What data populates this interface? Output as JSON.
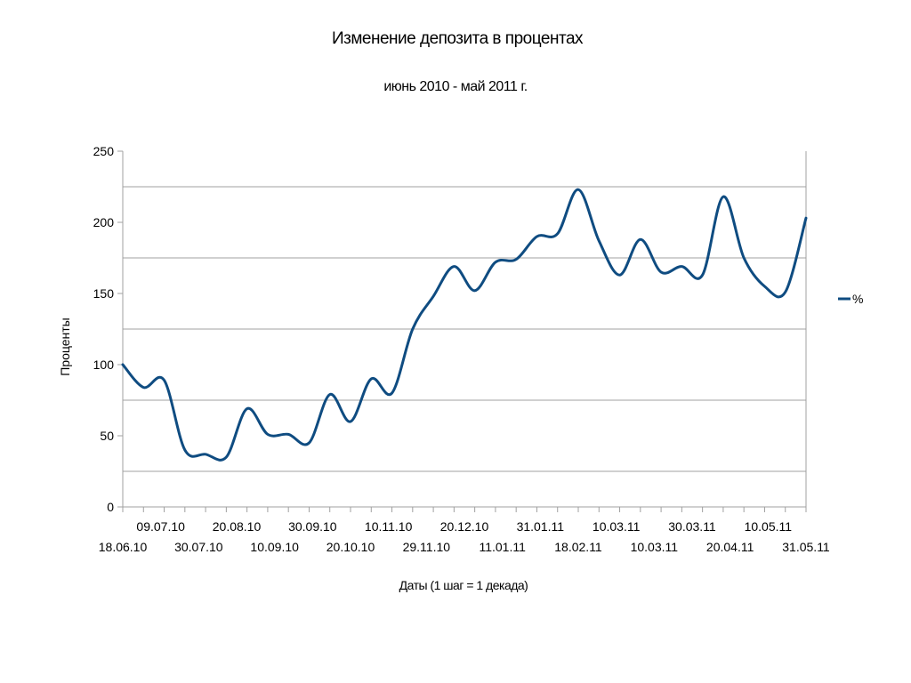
{
  "chart_data": {
    "type": "line",
    "title": "Изменение депозита в процентах",
    "subtitle": "июнь 2010 - май 2011 г.",
    "xlabel": "Даты (1 шаг = 1 декада)",
    "ylabel": "Проценты",
    "ylim": [
      0,
      250
    ],
    "yticks": [
      "0",
      "50",
      "100",
      "150",
      "200",
      "250"
    ],
    "grid": true,
    "legend_position": "right",
    "x_tick_labels": [
      "18.06.10",
      "09.07.10",
      "30.07.10",
      "20.08.10",
      "10.09.10",
      "30.09.10",
      "20.10.10",
      "10.11.10",
      "29.11.10",
      "20.12.10",
      "11.01.11",
      "31.01.11",
      "18.02.11",
      "10.03.11",
      "10.03.11",
      "30.03.11",
      "20.04.11",
      "10.05.11",
      "31.05.11"
    ],
    "series": [
      {
        "name": "%",
        "color": "#0f4c81",
        "values": [
          100,
          84,
          89,
          40,
          37,
          35,
          69,
          51,
          51,
          45,
          79,
          60,
          90,
          80,
          125,
          148,
          169,
          152,
          172,
          174,
          190,
          192,
          223,
          187,
          163,
          188,
          165,
          169,
          163,
          218,
          175,
          155,
          151,
          203
        ]
      }
    ]
  }
}
